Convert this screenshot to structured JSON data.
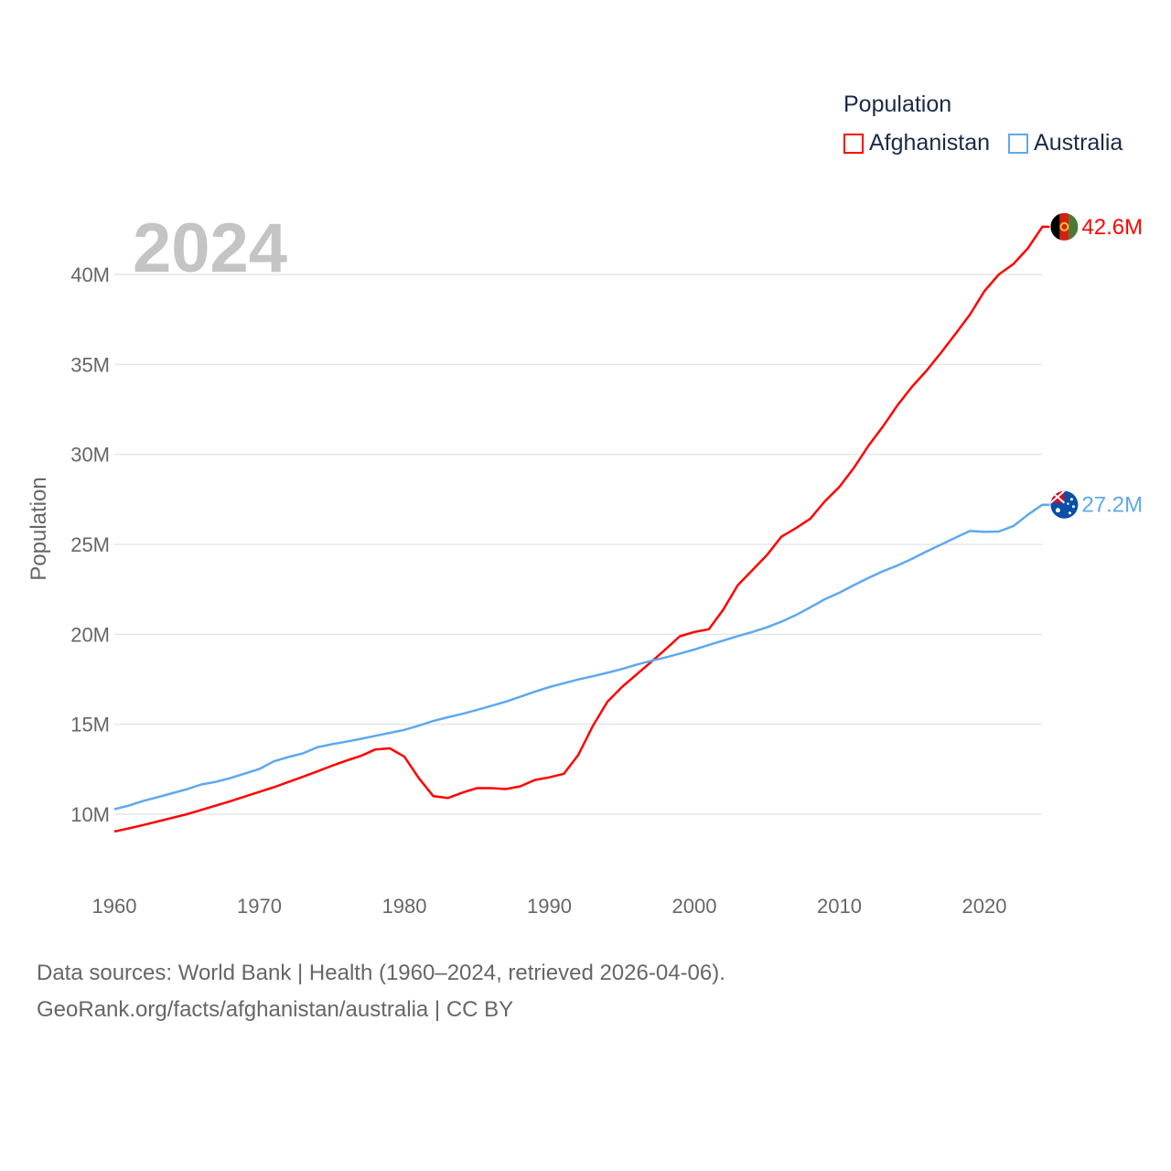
{
  "legend": {
    "title": "Population",
    "items": [
      {
        "label": "Afghanistan",
        "color": "#ff0000"
      },
      {
        "label": "Australia",
        "color": "#5ea8ee"
      }
    ]
  },
  "year_label": "2024",
  "footer": {
    "line1": "Data sources: World Bank | Health (1960–2024, retrieved 2026-04-06).",
    "line2": "GeoRank.org/facts/afghanistan/australia | CC BY"
  },
  "chart_data": {
    "type": "line",
    "title": "",
    "xlabel": "",
    "ylabel": "Population",
    "xlim": [
      1960,
      2024
    ],
    "ylim": [
      6,
      44
    ],
    "x_ticks": [
      1960,
      1970,
      1980,
      1990,
      2000,
      2010,
      2020
    ],
    "x_tick_labels": [
      "1960",
      "1970",
      "1980",
      "1990",
      "2000",
      "2010",
      "2020"
    ],
    "y_ticks": [
      10,
      15,
      20,
      25,
      30,
      35,
      40
    ],
    "y_tick_labels": [
      "10M",
      "15M",
      "20M",
      "25M",
      "30M",
      "35M",
      "40M"
    ],
    "y_unit": "millions",
    "grid": true,
    "legend_position": "top-right",
    "x": [
      1960,
      1961,
      1962,
      1963,
      1964,
      1965,
      1966,
      1967,
      1968,
      1969,
      1970,
      1971,
      1972,
      1973,
      1974,
      1975,
      1976,
      1977,
      1978,
      1979,
      1980,
      1981,
      1982,
      1983,
      1984,
      1985,
      1986,
      1987,
      1988,
      1989,
      1990,
      1991,
      1992,
      1993,
      1994,
      1995,
      1996,
      1997,
      1998,
      1999,
      2000,
      2001,
      2002,
      2003,
      2004,
      2005,
      2006,
      2007,
      2008,
      2009,
      2010,
      2011,
      2012,
      2013,
      2014,
      2015,
      2016,
      2017,
      2018,
      2019,
      2020,
      2021,
      2022,
      2023,
      2024
    ],
    "series": [
      {
        "name": "Afghanistan",
        "color": "#ff0000",
        "end_label": "42.6M",
        "values": [
          9.04,
          9.21,
          9.4,
          9.6,
          9.8,
          10.0,
          10.24,
          10.48,
          10.72,
          10.98,
          11.24,
          11.5,
          11.79,
          12.08,
          12.38,
          12.69,
          12.98,
          13.24,
          13.6,
          13.66,
          13.2,
          12.0,
          11.0,
          10.9,
          11.2,
          11.45,
          11.45,
          11.4,
          11.55,
          11.9,
          12.05,
          12.25,
          13.3,
          14.9,
          16.25,
          17.07,
          17.76,
          18.45,
          19.16,
          19.89,
          20.13,
          20.28,
          21.38,
          22.73,
          23.56,
          24.4,
          25.42,
          25.9,
          26.43,
          27.39,
          28.19,
          29.25,
          30.47,
          31.54,
          32.72,
          33.75,
          34.64,
          35.64,
          36.69,
          37.77,
          39.07,
          40.0,
          40.58,
          41.45,
          42.65
        ]
      },
      {
        "name": "Australia",
        "color": "#5ea8ee",
        "end_label": "27.2M",
        "values": [
          10.28,
          10.48,
          10.74,
          10.95,
          11.17,
          11.39,
          11.65,
          11.8,
          12.01,
          12.26,
          12.51,
          12.94,
          13.18,
          13.38,
          13.72,
          13.89,
          14.03,
          14.19,
          14.36,
          14.52,
          14.69,
          14.92,
          15.18,
          15.39,
          15.58,
          15.79,
          16.02,
          16.26,
          16.53,
          16.81,
          17.07,
          17.28,
          17.49,
          17.67,
          17.86,
          18.07,
          18.31,
          18.52,
          18.71,
          18.93,
          19.15,
          19.41,
          19.65,
          19.9,
          20.13,
          20.39,
          20.7,
          21.07,
          21.5,
          21.95,
          22.31,
          22.73,
          23.13,
          23.5,
          23.82,
          24.19,
          24.6,
          24.98,
          25.37,
          25.74,
          25.69,
          25.71,
          26.01,
          26.64,
          27.2
        ]
      }
    ]
  }
}
